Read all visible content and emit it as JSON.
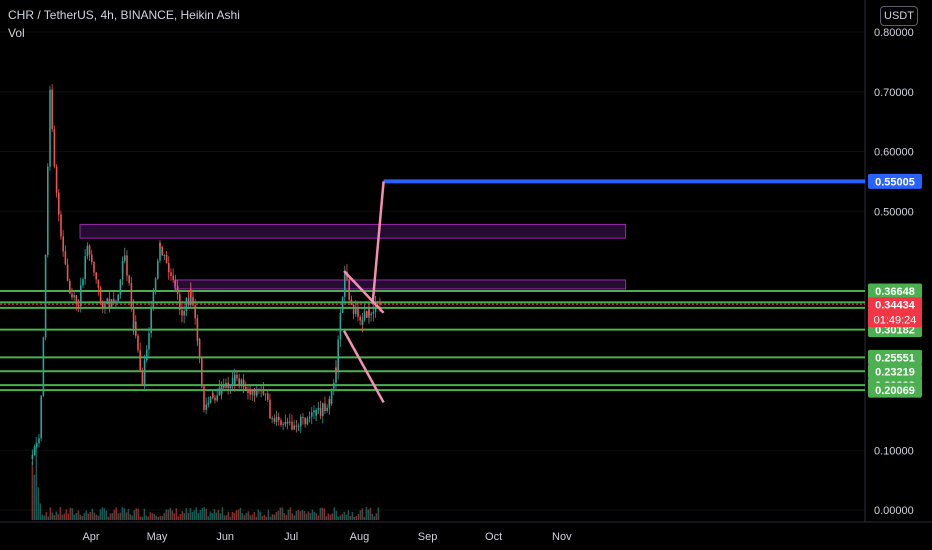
{
  "header": {
    "symbol_line": "CHR / TetherUS, 4h, BINANCE, Heikin Ashi",
    "volume_label": "Vol",
    "currency": "USDT"
  },
  "colors": {
    "background": "#000000",
    "up": "#26a69a",
    "down": "#ef5350",
    "level_line": "#4caf50",
    "level_tag": "#4caf50",
    "target_line": "#2962ff",
    "zone_fill": "#2a0f3a",
    "zone_border": "#9c27b0",
    "pattern_line": "#f48fb1",
    "price_tag": "#f23645"
  },
  "chart_data": {
    "type": "candlestick",
    "title": "CHR / TetherUS, 4h, BINANCE, Heikin Ashi",
    "xlabel": "",
    "ylabel": "",
    "ylim": [
      0,
      0.82
    ],
    "x_ticks": [
      "Apr",
      "May",
      "Jun",
      "Jul",
      "Aug",
      "Sep",
      "Oct",
      "Nov"
    ],
    "y_ticks": [
      "0.80000",
      "0.70000",
      "0.60000",
      "0.50000",
      "0.10000",
      "0.00000"
    ],
    "price_path": [
      {
        "date": "2021-03-05",
        "price": 0.085
      },
      {
        "date": "2021-03-08",
        "price": 0.12
      },
      {
        "date": "2021-03-10",
        "price": 0.28
      },
      {
        "date": "2021-03-13",
        "price": 0.71
      },
      {
        "date": "2021-03-15",
        "price": 0.58
      },
      {
        "date": "2021-03-18",
        "price": 0.45
      },
      {
        "date": "2021-03-22",
        "price": 0.36
      },
      {
        "date": "2021-03-26",
        "price": 0.34
      },
      {
        "date": "2021-03-30",
        "price": 0.45
      },
      {
        "date": "2021-04-05",
        "price": 0.35
      },
      {
        "date": "2021-04-12",
        "price": 0.34
      },
      {
        "date": "2021-04-16",
        "price": 0.43
      },
      {
        "date": "2021-04-20",
        "price": 0.31
      },
      {
        "date": "2021-04-24",
        "price": 0.22
      },
      {
        "date": "2021-04-28",
        "price": 0.33
      },
      {
        "date": "2021-05-02",
        "price": 0.44
      },
      {
        "date": "2021-05-08",
        "price": 0.38
      },
      {
        "date": "2021-05-12",
        "price": 0.33
      },
      {
        "date": "2021-05-16",
        "price": 0.36
      },
      {
        "date": "2021-05-19",
        "price": 0.29
      },
      {
        "date": "2021-05-22",
        "price": 0.17
      },
      {
        "date": "2021-05-26",
        "price": 0.19
      },
      {
        "date": "2021-05-30",
        "price": 0.2
      },
      {
        "date": "2021-06-05",
        "price": 0.22
      },
      {
        "date": "2021-06-12",
        "price": 0.2
      },
      {
        "date": "2021-06-18",
        "price": 0.2
      },
      {
        "date": "2021-06-22",
        "price": 0.15
      },
      {
        "date": "2021-06-28",
        "price": 0.14
      },
      {
        "date": "2021-07-05",
        "price": 0.15
      },
      {
        "date": "2021-07-12",
        "price": 0.16
      },
      {
        "date": "2021-07-18",
        "price": 0.18
      },
      {
        "date": "2021-07-21",
        "price": 0.24
      },
      {
        "date": "2021-07-23",
        "price": 0.32
      },
      {
        "date": "2021-07-25",
        "price": 0.4
      },
      {
        "date": "2021-07-28",
        "price": 0.34
      },
      {
        "date": "2021-08-02",
        "price": 0.32
      },
      {
        "date": "2021-08-05",
        "price": 0.33
      },
      {
        "date": "2021-08-08",
        "price": 0.34
      },
      {
        "date": "2021-08-10",
        "price": 0.34434
      }
    ],
    "current_price": "0.34434",
    "countdown": "01:49:24",
    "support_resistance_levels": [
      "0.36648",
      "0.34747",
      "0.33820",
      "0.30182",
      "0.25551",
      "0.23219",
      "0.20898",
      "0.20069"
    ],
    "target_level": "0.55005",
    "resistance_zones": [
      {
        "from_date": "2021-03-27",
        "to_date": "2021-11-30",
        "low": 0.455,
        "high": 0.478
      },
      {
        "from_date": "2021-05-09",
        "to_date": "2021-11-30",
        "low": 0.37,
        "high": 0.385
      }
    ],
    "falling_wedge": {
      "upper": [
        {
          "date": "2021-07-25",
          "price": 0.4
        },
        {
          "date": "2021-08-12",
          "price": 0.33
        }
      ],
      "lower": [
        {
          "date": "2021-07-25",
          "price": 0.3
        },
        {
          "date": "2021-08-12",
          "price": 0.18
        }
      ]
    },
    "projection": [
      {
        "date": "2021-08-07",
        "price": 0.345
      },
      {
        "date": "2021-08-12",
        "price": 0.55005
      },
      {
        "date": "2021-11-30",
        "price": 0.55005
      }
    ]
  }
}
